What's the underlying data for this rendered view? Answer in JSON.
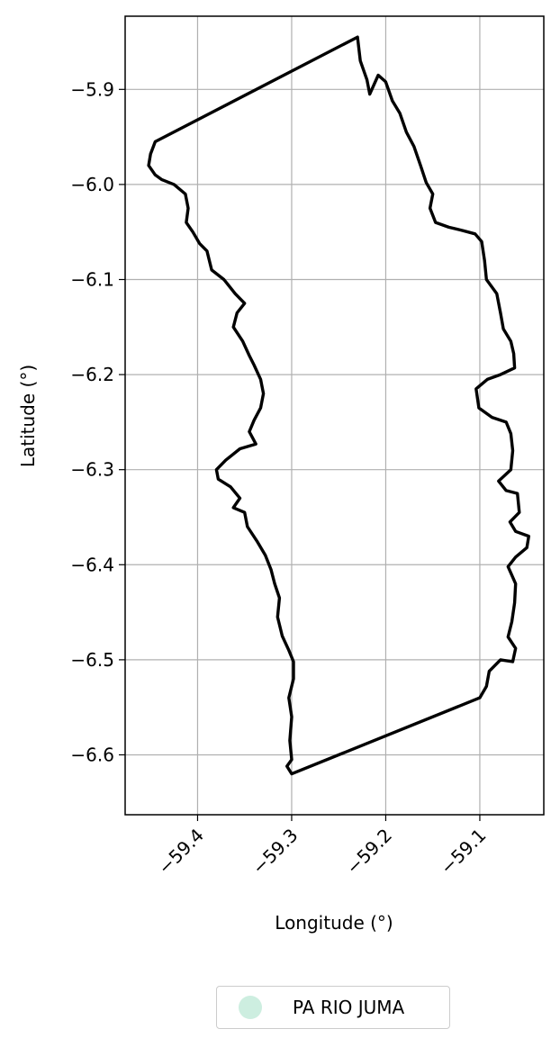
{
  "chart_data": {
    "type": "map",
    "xlabel": "Longitude (°)",
    "ylabel": "Latitude (°)",
    "xlim": [
      -59.477,
      -59.032
    ],
    "ylim": [
      -6.663,
      -5.823
    ],
    "xticks": [
      -59.4,
      -59.3,
      -59.2,
      -59.1
    ],
    "xtick_labels": [
      "−59.4",
      "−59.3",
      "−59.2",
      "−59.1"
    ],
    "yticks": [
      -5.9,
      -6.0,
      -6.1,
      -6.2,
      -6.3,
      -6.4,
      -6.5,
      -6.6
    ],
    "ytick_labels": [
      "−5.9",
      "−6.0",
      "−6.1",
      "−6.2",
      "−6.3",
      "−6.4",
      "−6.5",
      "−6.6"
    ],
    "grid": true,
    "legend_position": "bottom-center",
    "series": [
      {
        "name": "PA RIO JUMA",
        "marker_color": "#cdeee0",
        "boundary_color": "#000000",
        "boundary": [
          [
            -59.23,
            -5.845
          ],
          [
            -59.227,
            -5.87
          ],
          [
            -59.22,
            -5.89
          ],
          [
            -59.217,
            -5.905
          ],
          [
            -59.208,
            -5.885
          ],
          [
            -59.2,
            -5.892
          ],
          [
            -59.193,
            -5.912
          ],
          [
            -59.185,
            -5.925
          ],
          [
            -59.178,
            -5.945
          ],
          [
            -59.17,
            -5.96
          ],
          [
            -59.163,
            -5.98
          ],
          [
            -59.157,
            -5.998
          ],
          [
            -59.15,
            -6.01
          ],
          [
            -59.153,
            -6.025
          ],
          [
            -59.147,
            -6.04
          ],
          [
            -59.133,
            -6.045
          ],
          [
            -59.12,
            -6.048
          ],
          [
            -59.105,
            -6.052
          ],
          [
            -59.098,
            -6.06
          ],
          [
            -59.095,
            -6.08
          ],
          [
            -59.093,
            -6.1
          ],
          [
            -59.082,
            -6.115
          ],
          [
            -59.078,
            -6.135
          ],
          [
            -59.075,
            -6.152
          ],
          [
            -59.067,
            -6.165
          ],
          [
            -59.064,
            -6.178
          ],
          [
            -59.063,
            -6.193
          ],
          [
            -59.078,
            -6.2
          ],
          [
            -59.092,
            -6.205
          ],
          [
            -59.104,
            -6.215
          ],
          [
            -59.101,
            -6.235
          ],
          [
            -59.087,
            -6.245
          ],
          [
            -59.072,
            -6.25
          ],
          [
            -59.067,
            -6.262
          ],
          [
            -59.065,
            -6.28
          ],
          [
            -59.067,
            -6.3
          ],
          [
            -59.08,
            -6.312
          ],
          [
            -59.072,
            -6.322
          ],
          [
            -59.06,
            -6.325
          ],
          [
            -59.058,
            -6.345
          ],
          [
            -59.068,
            -6.355
          ],
          [
            -59.062,
            -6.365
          ],
          [
            -59.048,
            -6.37
          ],
          [
            -59.05,
            -6.382
          ],
          [
            -59.062,
            -6.392
          ],
          [
            -59.07,
            -6.402
          ],
          [
            -59.062,
            -6.42
          ],
          [
            -59.063,
            -6.44
          ],
          [
            -59.066,
            -6.46
          ],
          [
            -59.07,
            -6.476
          ],
          [
            -59.062,
            -6.488
          ],
          [
            -59.065,
            -6.502
          ],
          [
            -59.078,
            -6.5
          ],
          [
            -59.09,
            -6.512
          ],
          [
            -59.093,
            -6.528
          ],
          [
            -59.1,
            -6.54
          ],
          [
            -59.3,
            -6.62
          ],
          [
            -59.305,
            -6.612
          ],
          [
            -59.3,
            -6.605
          ],
          [
            -59.302,
            -6.585
          ],
          [
            -59.3,
            -6.56
          ],
          [
            -59.303,
            -6.54
          ],
          [
            -59.298,
            -6.52
          ],
          [
            -59.298,
            -6.502
          ],
          [
            -59.303,
            -6.49
          ],
          [
            -59.31,
            -6.475
          ],
          [
            -59.315,
            -6.455
          ],
          [
            -59.313,
            -6.435
          ],
          [
            -59.318,
            -6.42
          ],
          [
            -59.322,
            -6.405
          ],
          [
            -59.328,
            -6.39
          ],
          [
            -59.337,
            -6.375
          ],
          [
            -59.347,
            -6.36
          ],
          [
            -59.35,
            -6.345
          ],
          [
            -59.362,
            -6.34
          ],
          [
            -59.355,
            -6.33
          ],
          [
            -59.365,
            -6.318
          ],
          [
            -59.378,
            -6.31
          ],
          [
            -59.38,
            -6.3
          ],
          [
            -59.37,
            -6.29
          ],
          [
            -59.355,
            -6.278
          ],
          [
            -59.338,
            -6.273
          ],
          [
            -59.345,
            -6.26
          ],
          [
            -59.34,
            -6.248
          ],
          [
            -59.333,
            -6.235
          ],
          [
            -59.33,
            -6.22
          ],
          [
            -59.333,
            -6.205
          ],
          [
            -59.34,
            -6.19
          ],
          [
            -59.345,
            -6.18
          ],
          [
            -59.352,
            -6.165
          ],
          [
            -59.362,
            -6.15
          ],
          [
            -59.358,
            -6.135
          ],
          [
            -59.35,
            -6.125
          ],
          [
            -59.36,
            -6.115
          ],
          [
            -59.372,
            -6.1
          ],
          [
            -59.385,
            -6.09
          ],
          [
            -59.39,
            -6.07
          ],
          [
            -59.398,
            -6.062
          ],
          [
            -59.405,
            -6.05
          ],
          [
            -59.412,
            -6.04
          ],
          [
            -59.41,
            -6.025
          ],
          [
            -59.413,
            -6.01
          ],
          [
            -59.425,
            -6.0
          ],
          [
            -59.438,
            -5.995
          ],
          [
            -59.445,
            -5.99
          ],
          [
            -59.452,
            -5.98
          ],
          [
            -59.45,
            -5.968
          ],
          [
            -59.445,
            -5.955
          ],
          [
            -59.23,
            -5.845
          ]
        ]
      }
    ]
  }
}
